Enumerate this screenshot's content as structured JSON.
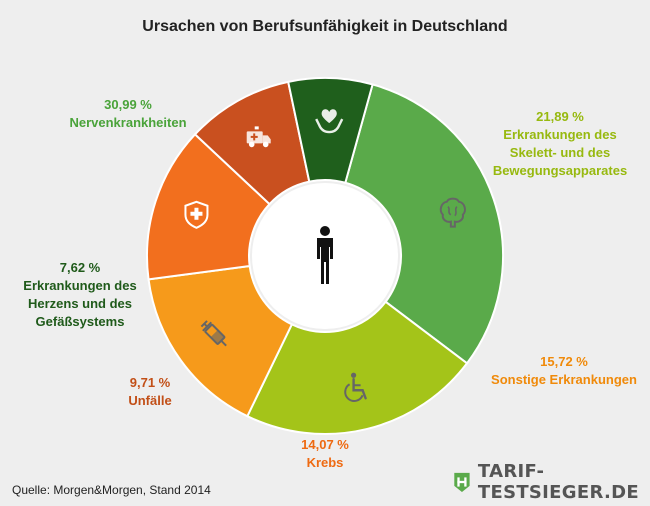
{
  "chart_data": {
    "type": "pie",
    "title": "Ursachen von Berufsunfähigkeit in Deutschland",
    "slices": [
      {
        "label": "Nervenkrankheiten",
        "value": 30.99,
        "value_label": "30,99 %",
        "color": "#5aaa4a",
        "label_color": "#4aa33a",
        "icon": "brain-icon"
      },
      {
        "label": "Erkrankungen des\nSkelett- und des\nBewegungsapparates",
        "value": 21.89,
        "value_label": "21,89 %",
        "color": "#a4c419",
        "label_color": "#97b90f",
        "icon": "wheelchair-icon"
      },
      {
        "label": "Sonstige Erkrankungen",
        "value": 15.72,
        "value_label": "15,72 %",
        "color": "#f69a1b",
        "label_color": "#f08a0a",
        "icon": "syringe-icon"
      },
      {
        "label": "Krebs",
        "value": 14.07,
        "value_label": "14,07 %",
        "color": "#f26f1e",
        "label_color": "#ee6a12",
        "icon": "medical-shield-icon"
      },
      {
        "label": "Unfälle",
        "value": 9.71,
        "value_label": "9,71 %",
        "color": "#c9501f",
        "label_color": "#c24f17",
        "icon": "ambulance-icon"
      },
      {
        "label": "Erkrankungen des\nHerzens und des\nGefäßsystems",
        "value": 7.62,
        "value_label": "7,62 %",
        "color": "#1f5f1c",
        "label_color": "#1f5a1a",
        "icon": "heart-hands-icon"
      }
    ],
    "center_icon": "person-icon",
    "legend": "none"
  },
  "footer": {
    "source": "Quelle: Morgen&Morgen, Stand 2014",
    "brand": "TARIF-TESTSIEGER.DE"
  }
}
